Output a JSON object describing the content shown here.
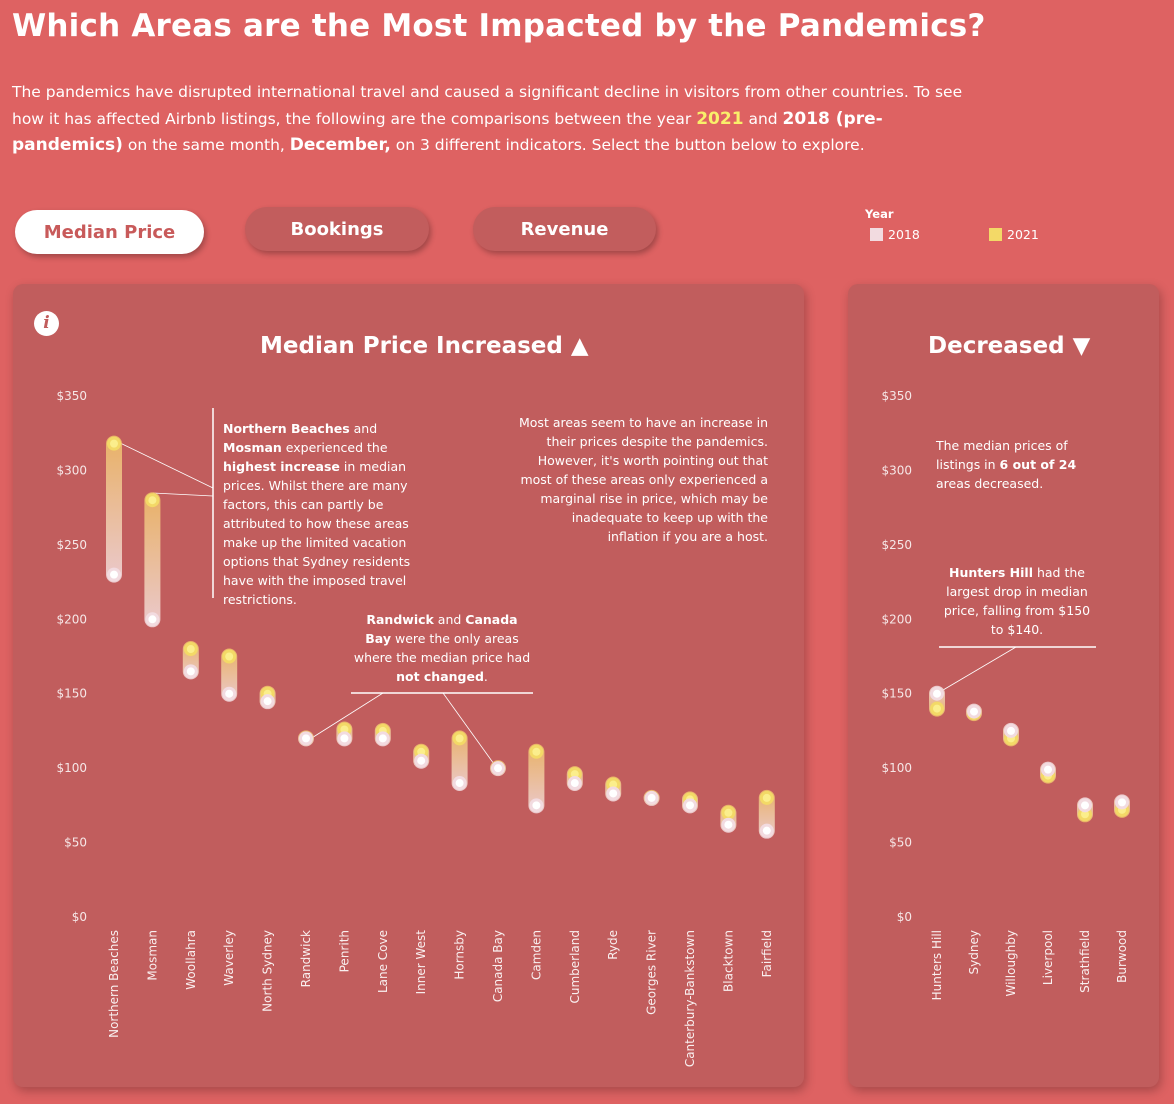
{
  "header": {
    "title": "Which Areas are the Most Impacted by the Pandemics?",
    "intro_part1": "The pandemics have disrupted international travel and caused a significant decline in visitors from other countries. To see how it has affected Airbnb listings, the following are the comparisons between the year ",
    "intro_year_2021": "2021",
    "intro_and": " and ",
    "intro_year_2018": "2018 (pre-pandemics)",
    "intro_on": " on the same month, ",
    "intro_month": "December,",
    "intro_part2": " on 3 different indicators. Select the button below to explore."
  },
  "buttons": {
    "median_price": "Median Price",
    "bookings": "Bookings",
    "revenue": "Revenue"
  },
  "legend": {
    "title": "Year",
    "item_2018": "2018",
    "item_2021": "2021"
  },
  "colors": {
    "background": "#de6262",
    "panel": "#c15d5d",
    "series_2018": "#f2dbe0",
    "series_2021": "#f3d967",
    "text": "#ffffff"
  },
  "panels": {
    "increased_title": "Median Price Increased",
    "increased_arrow": "▲",
    "decreased_title": "Decreased",
    "decreased_arrow": "▼",
    "info_icon_glyph": "i"
  },
  "annotations": {
    "northern_a": "Northern Beaches",
    "northern_b": " and ",
    "northern_c": "Mosman",
    "northern_d": " experienced the ",
    "northern_e": "highest increase",
    "northern_f": " in median prices. Whilst there are many factors, this can partly be attributed to how these areas make up the limited vacation options that Sydney residents have with the imposed travel restrictions.",
    "most_areas": "Most areas seem to have an increase in their prices despite the pandemics. However, it's worth pointing out that most of these areas only experienced a marginal rise in price, which may be inadequate to keep up with the inflation if you are a host.",
    "randwick_a": "Randwick",
    "randwick_b": " and ",
    "randwick_c": "Canada Bay",
    "randwick_d": " were the only areas where the median price had ",
    "randwick_e": "not changed",
    "randwick_f": ".",
    "decreased_a": "The median prices of listings in ",
    "decreased_b": "6 out of 24",
    "decreased_c": " areas decreased.",
    "hunters_a": "Hunters Hill",
    "hunters_b": " had the largest drop in median price, falling from $150 to $140."
  },
  "chart_data": [
    {
      "type": "dumbbell",
      "title": "Median Price Increased",
      "ylim": [
        0,
        350
      ],
      "yticks": [
        "$0",
        "$50",
        "$100",
        "$150",
        "$200",
        "$250",
        "$300",
        "$350"
      ],
      "categories": [
        "Northern Beaches",
        "Mosman",
        "Woollahra",
        "Waverley",
        "North Sydney",
        "Randwick",
        "Penrith",
        "Lane Cove",
        "Inner West",
        "Hornsby",
        "Canada Bay",
        "Camden",
        "Cumberland",
        "Ryde",
        "Georges River",
        "Canterbury-Bankstown",
        "Blacktown",
        "Fairfield"
      ],
      "series": [
        {
          "name": "2018",
          "values": [
            230,
            200,
            165,
            150,
            145,
            120,
            120,
            120,
            105,
            90,
            100,
            75,
            90,
            83,
            80,
            75,
            62,
            58
          ]
        },
        {
          "name": "2021",
          "values": [
            318,
            280,
            180,
            175,
            150,
            120,
            126,
            125,
            111,
            120,
            100,
            111,
            96,
            89,
            80,
            79,
            70,
            80
          ]
        }
      ]
    },
    {
      "type": "dumbbell",
      "title": "Decreased",
      "ylim": [
        0,
        350
      ],
      "yticks": [
        "$0",
        "$50",
        "$100",
        "$150",
        "$200",
        "$250",
        "$300",
        "$350"
      ],
      "categories": [
        "Hunters Hill",
        "Sydney",
        "Willoughby",
        "Liverpool",
        "Strathfield",
        "Burwood"
      ],
      "series": [
        {
          "name": "2018",
          "values": [
            150,
            138,
            125,
            99,
            75,
            77
          ]
        },
        {
          "name": "2021",
          "values": [
            140,
            137,
            120,
            95,
            69,
            72
          ]
        }
      ]
    }
  ]
}
